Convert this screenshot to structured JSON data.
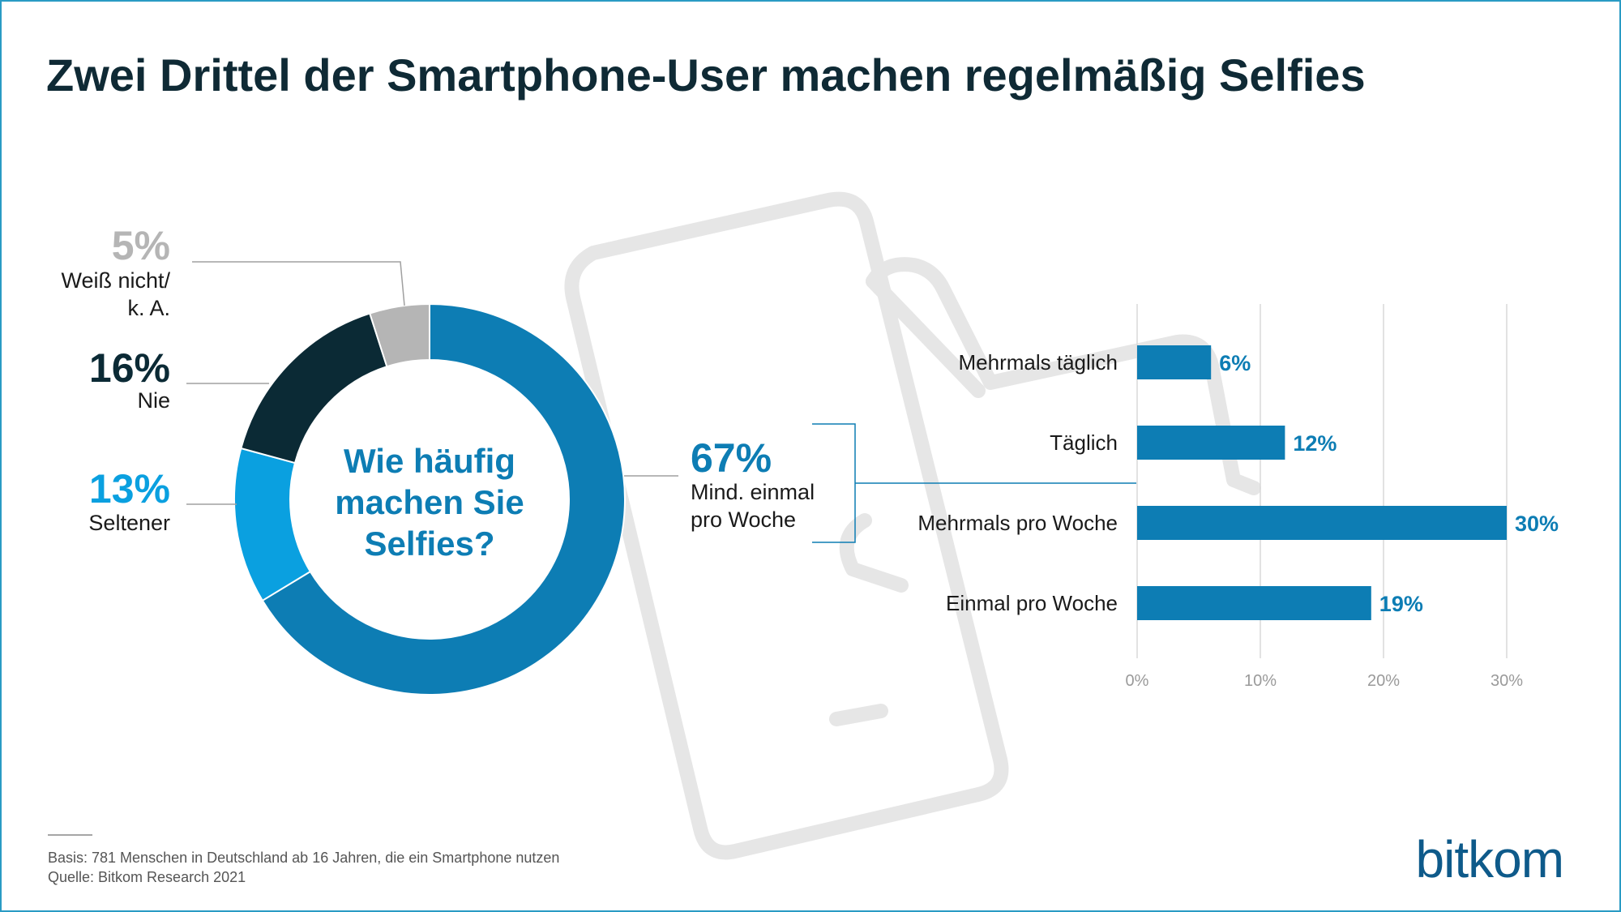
{
  "title": "Zwei Drittel der Smartphone-User machen regelmäßig Selfies",
  "donut": {
    "center_lines": [
      "Wie häufig",
      "machen Sie",
      "Selfies?"
    ],
    "slices": [
      {
        "label_lines": [
          "Weiß nicht/",
          "k. A."
        ],
        "pct": "5%",
        "value": 5,
        "color": "#b5b5b5",
        "label_color": "#b5b5b5"
      },
      {
        "label_lines": [
          "Nie"
        ],
        "pct": "16%",
        "value": 16,
        "color": "#0b2a35",
        "label_color": "#0b2a35"
      },
      {
        "label_lines": [
          "Seltener"
        ],
        "pct": "13%",
        "value": 13,
        "color": "#0aa0e0",
        "label_color": "#0aa0e0"
      },
      {
        "label_lines": [
          "Mind. einmal",
          "pro Woche"
        ],
        "pct": "67%",
        "value": 67,
        "color": "#0d7db4",
        "label_color": "#0d7db4"
      }
    ]
  },
  "chart_data": {
    "type": "bar",
    "orientation": "horizontal",
    "categories": [
      "Mehrmals täglich",
      "Täglich",
      "Mehrmals pro Woche",
      "Einmal pro Woche"
    ],
    "values": [
      6,
      12,
      30,
      19
    ],
    "value_labels": [
      "6%",
      "12%",
      "30%",
      "19%"
    ],
    "xlim": [
      0,
      30
    ],
    "xticks": [
      "0%",
      "10%",
      "20%",
      "30%"
    ],
    "grid": true,
    "bar_color": "#0d7db4"
  },
  "footer": {
    "basis": "Basis: 781 Menschen in Deutschland ab 16 Jahren, die ein Smartphone nutzen",
    "source": "Quelle: Bitkom Research 2021"
  },
  "logo": "bitkom",
  "colors": {
    "accent": "#0d7db4",
    "border": "#2a9bc4",
    "title": "#0f2a35"
  }
}
